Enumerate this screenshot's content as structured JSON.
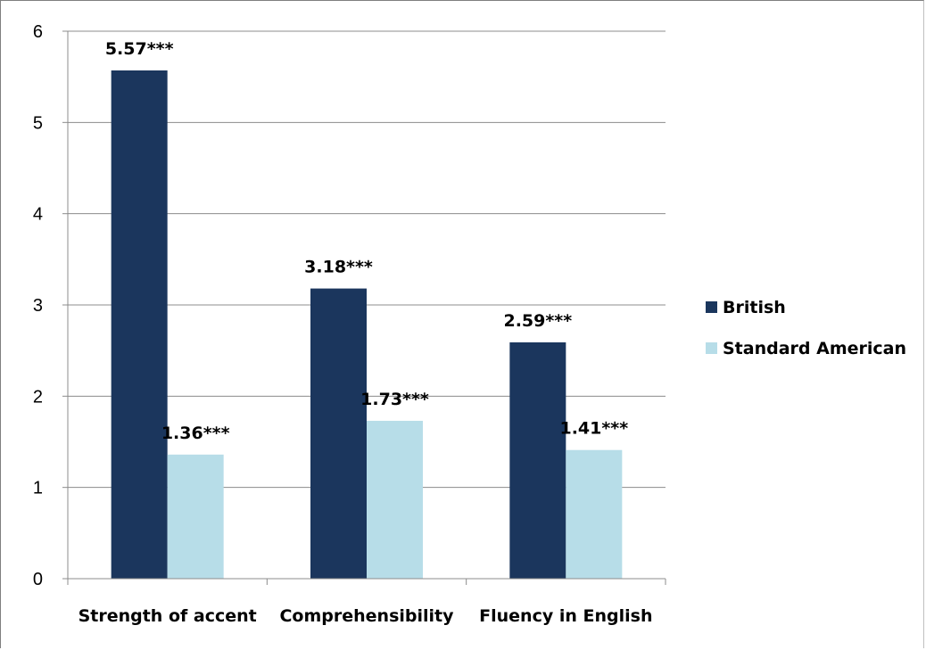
{
  "chart_data": {
    "type": "bar",
    "categories": [
      "Strength of accent",
      "Comprehensibility",
      "Fluency in English"
    ],
    "series": [
      {
        "name": "British",
        "color": "#1b365d",
        "values": [
          5.57,
          3.18,
          2.59
        ],
        "labels": [
          "5.57***",
          "3.18***",
          "2.59***"
        ]
      },
      {
        "name": "Standard American",
        "color": "#b7dde8",
        "values": [
          1.36,
          1.73,
          1.41
        ],
        "labels": [
          "1.36***",
          "1.73***",
          "1.41***"
        ]
      }
    ],
    "ylim": [
      0,
      6
    ],
    "yticks": [
      0,
      1,
      2,
      3,
      4,
      5,
      6
    ],
    "grid": true,
    "legend_position": "right"
  }
}
